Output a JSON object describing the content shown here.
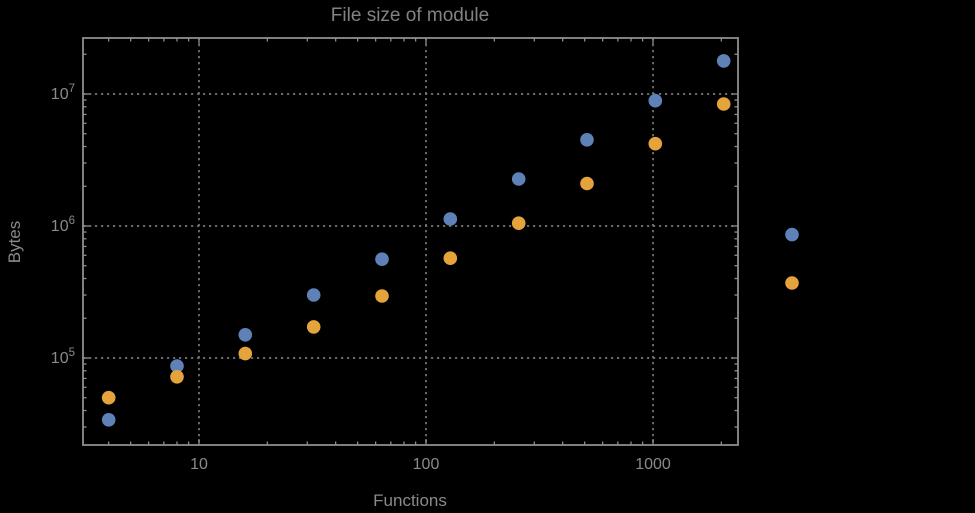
{
  "colors": {
    "background": "#000000",
    "frame": "#8e8e8e",
    "grid": "#787878",
    "text": "#8a8a8a",
    "title_text": "#828282",
    "series_blue": "#5E82B8",
    "series_orange": "#E5A33C"
  },
  "chart_data": {
    "type": "scatter",
    "title": "File size of module",
    "xlabel": "Functions",
    "ylabel": "Bytes",
    "xscale": "log",
    "yscale": "log",
    "xlim": [
      3.1,
      2340
    ],
    "ylim": [
      22000,
      26500000
    ],
    "grid": "dotted gridlines at each decade, log minor ticks on all four frame edges",
    "legend": "none",
    "x_ticks": [
      {
        "label": "10",
        "value": 10
      },
      {
        "label": "100",
        "value": 100
      },
      {
        "label": "1000",
        "value": 1000
      }
    ],
    "y_ticks": [
      {
        "mantissa": "10",
        "exponent": "5",
        "value": 100000
      },
      {
        "mantissa": "10",
        "exponent": "6",
        "value": 1000000
      },
      {
        "mantissa": "10",
        "exponent": "7",
        "value": 10000000
      }
    ],
    "series": [
      {
        "name": "series-blue",
        "color": "#5E82B8",
        "x": [
          4,
          8,
          16,
          32,
          64,
          128,
          256,
          512,
          1024,
          2048,
          4096
        ],
        "y": [
          34000,
          87000,
          150000,
          300000,
          560000,
          1130000,
          2270000,
          4500000,
          8900000,
          17800000,
          860000
        ]
      },
      {
        "name": "series-orange",
        "color": "#E5A33C",
        "x": [
          4,
          8,
          16,
          32,
          64,
          128,
          256,
          512,
          1024,
          2048,
          4096
        ],
        "y": [
          50000,
          72000,
          108000,
          172000,
          295000,
          570000,
          1050000,
          2100000,
          4200000,
          8400000,
          370000
        ]
      }
    ]
  }
}
